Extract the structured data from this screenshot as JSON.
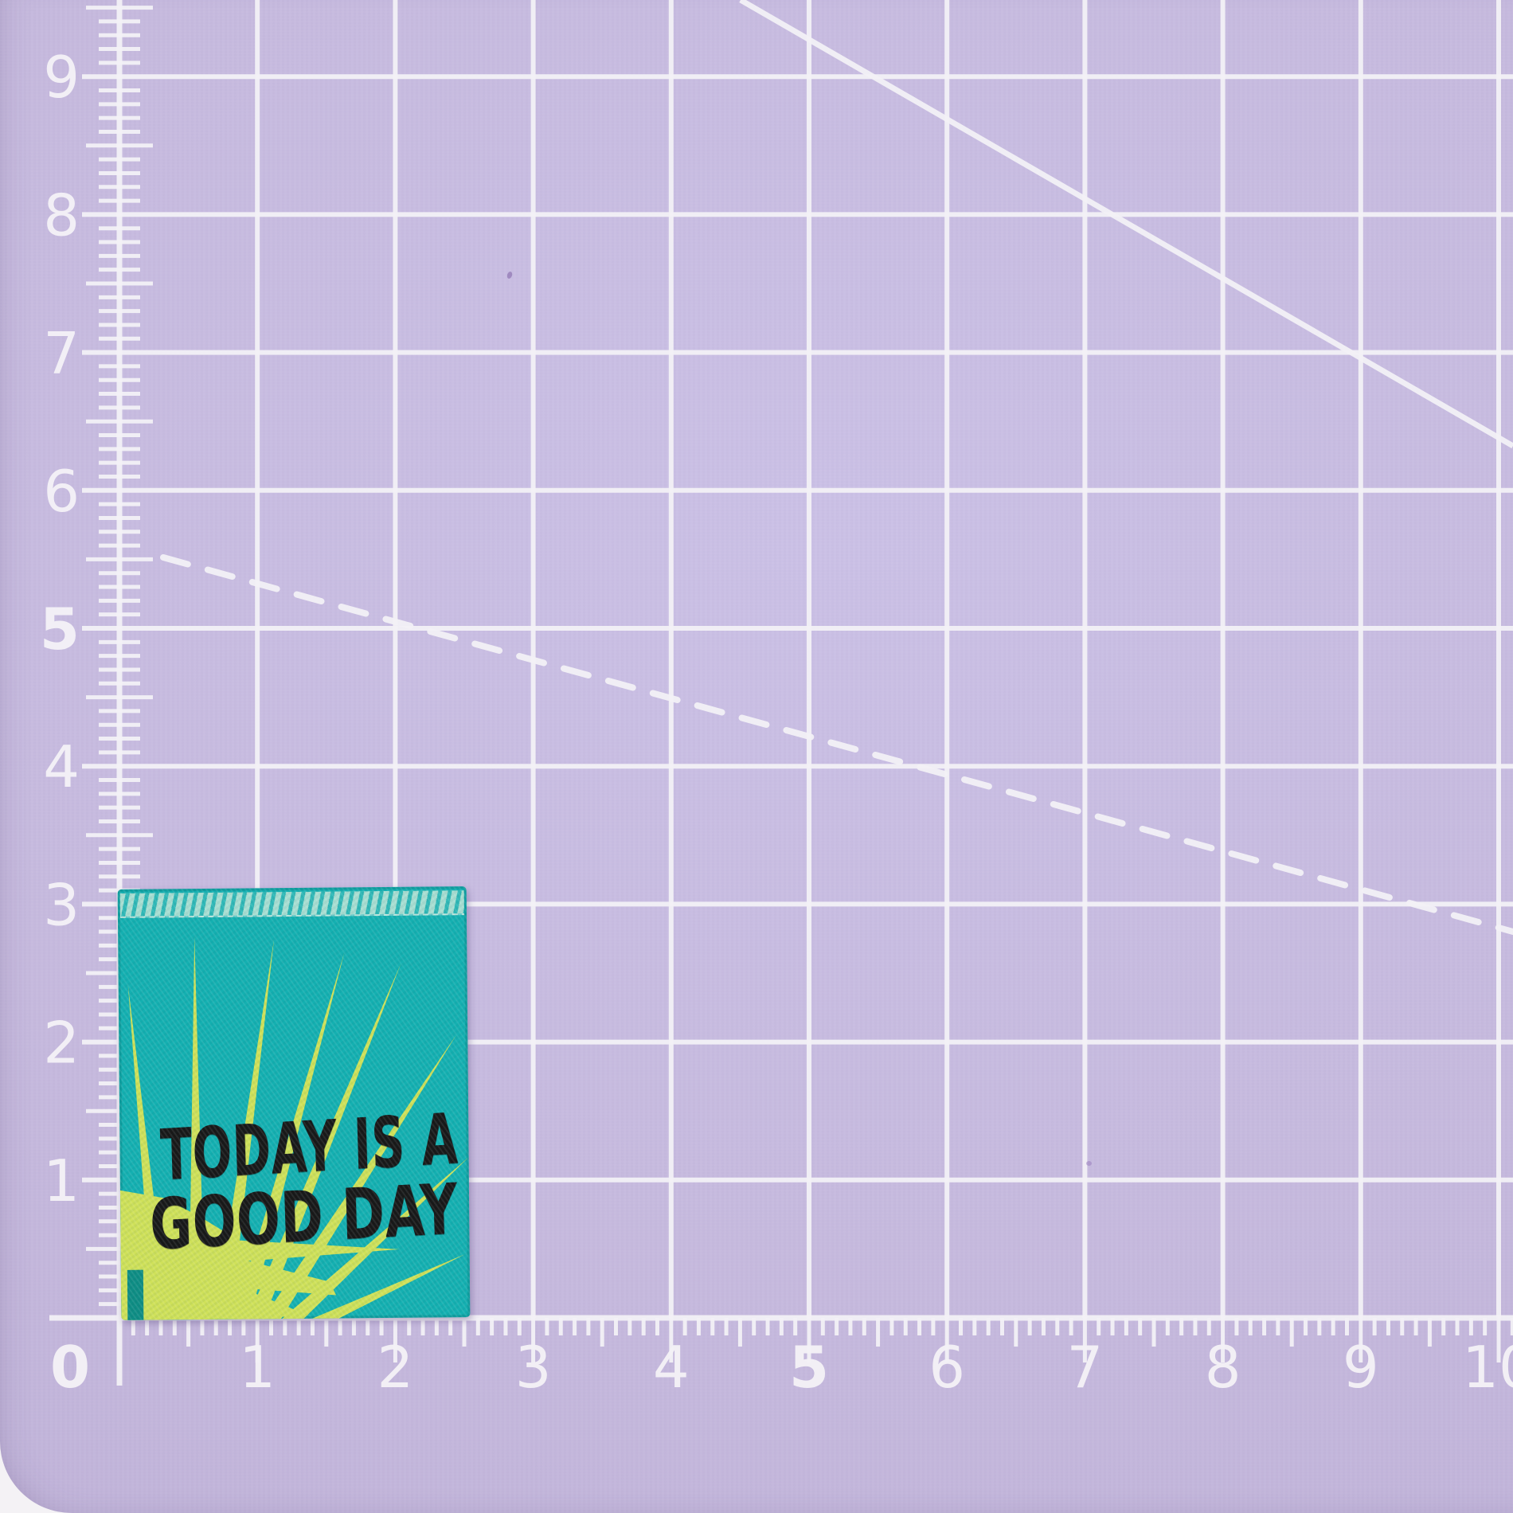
{
  "label_tag": {
    "line1": "TODAY IS A",
    "line2": "GOOD DAY",
    "colors": {
      "background": "#14b0b1",
      "stitched_edge": "#a8ded2",
      "sun": "#cfe159",
      "text": "#181818"
    }
  },
  "rulers": {
    "horizontal": {
      "labels": [
        "0",
        "1",
        "2",
        "3",
        "4",
        "5",
        "6",
        "7",
        "8",
        "9",
        "10"
      ],
      "emphasized": [
        "0",
        "5"
      ]
    },
    "vertical": {
      "labels": [
        "9",
        "8",
        "7",
        "6",
        "5",
        "4",
        "3",
        "2",
        "1"
      ],
      "emphasized": [
        "5"
      ]
    }
  },
  "mat": {
    "colors": {
      "surface": "#c6bade",
      "grid": "#f2f0f6",
      "outside": "#f4f2f5"
    }
  }
}
